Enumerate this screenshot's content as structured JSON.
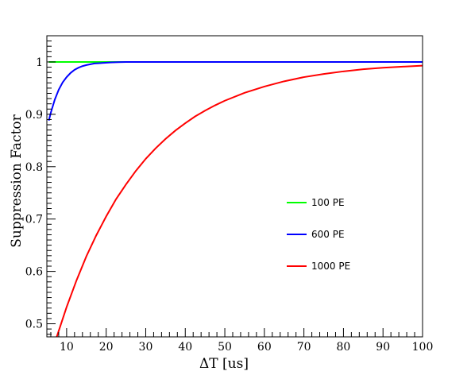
{
  "chart_data": {
    "type": "line",
    "xlabel": "ΔT [us]",
    "ylabel": "Suppression Factor",
    "xlim": [
      5,
      100
    ],
    "ylim": [
      0.475,
      1.05
    ],
    "x_ticks": [
      10,
      20,
      30,
      40,
      50,
      60,
      70,
      80,
      90,
      100
    ],
    "y_ticks": [
      0.5,
      0.6,
      0.7,
      0.8,
      0.9,
      1
    ],
    "x_tick_labels": [
      "10",
      "20",
      "30",
      "40",
      "50",
      "60",
      "70",
      "80",
      "90",
      "100"
    ],
    "y_tick_labels": [
      "0.5",
      "0.6",
      "0.7",
      "0.8",
      "0.9",
      "1"
    ],
    "grid": false,
    "legend_position": "center-right",
    "series": [
      {
        "name": "100 PE",
        "color": "#00ff00",
        "x": [
          5.5,
          10,
          20,
          30,
          40,
          50,
          60,
          70,
          80,
          90,
          100
        ],
        "y": [
          1.0,
          1.0,
          1.0,
          1.0,
          1.0,
          1.0,
          1.0,
          1.0,
          1.0,
          1.0,
          1.0
        ]
      },
      {
        "name": "600 PE",
        "color": "#0000ff",
        "x": [
          5.5,
          6,
          7,
          8,
          9,
          10,
          11,
          12,
          13,
          14,
          15,
          17,
          19,
          21,
          23,
          25,
          30,
          40,
          60,
          80,
          100
        ],
        "y": [
          0.888,
          0.903,
          0.928,
          0.947,
          0.961,
          0.971,
          0.979,
          0.985,
          0.989,
          0.992,
          0.994,
          0.997,
          0.998,
          0.999,
          0.9995,
          1.0,
          1.0,
          1.0,
          1.0,
          1.0,
          1.0
        ]
      },
      {
        "name": "1000 PE",
        "color": "#ff0000",
        "x": [
          7.5,
          10,
          12.5,
          15,
          17.5,
          20,
          22.5,
          25,
          27.5,
          30,
          32.5,
          35,
          37.5,
          40,
          42.5,
          45,
          47.5,
          50,
          55,
          60,
          65,
          70,
          75,
          80,
          85,
          90,
          95,
          100
        ],
        "y": [
          0.475,
          0.532,
          0.583,
          0.629,
          0.669,
          0.705,
          0.738,
          0.766,
          0.792,
          0.815,
          0.835,
          0.853,
          0.869,
          0.883,
          0.896,
          0.907,
          0.917,
          0.926,
          0.941,
          0.953,
          0.963,
          0.971,
          0.977,
          0.982,
          0.986,
          0.989,
          0.991,
          0.993
        ]
      }
    ]
  }
}
